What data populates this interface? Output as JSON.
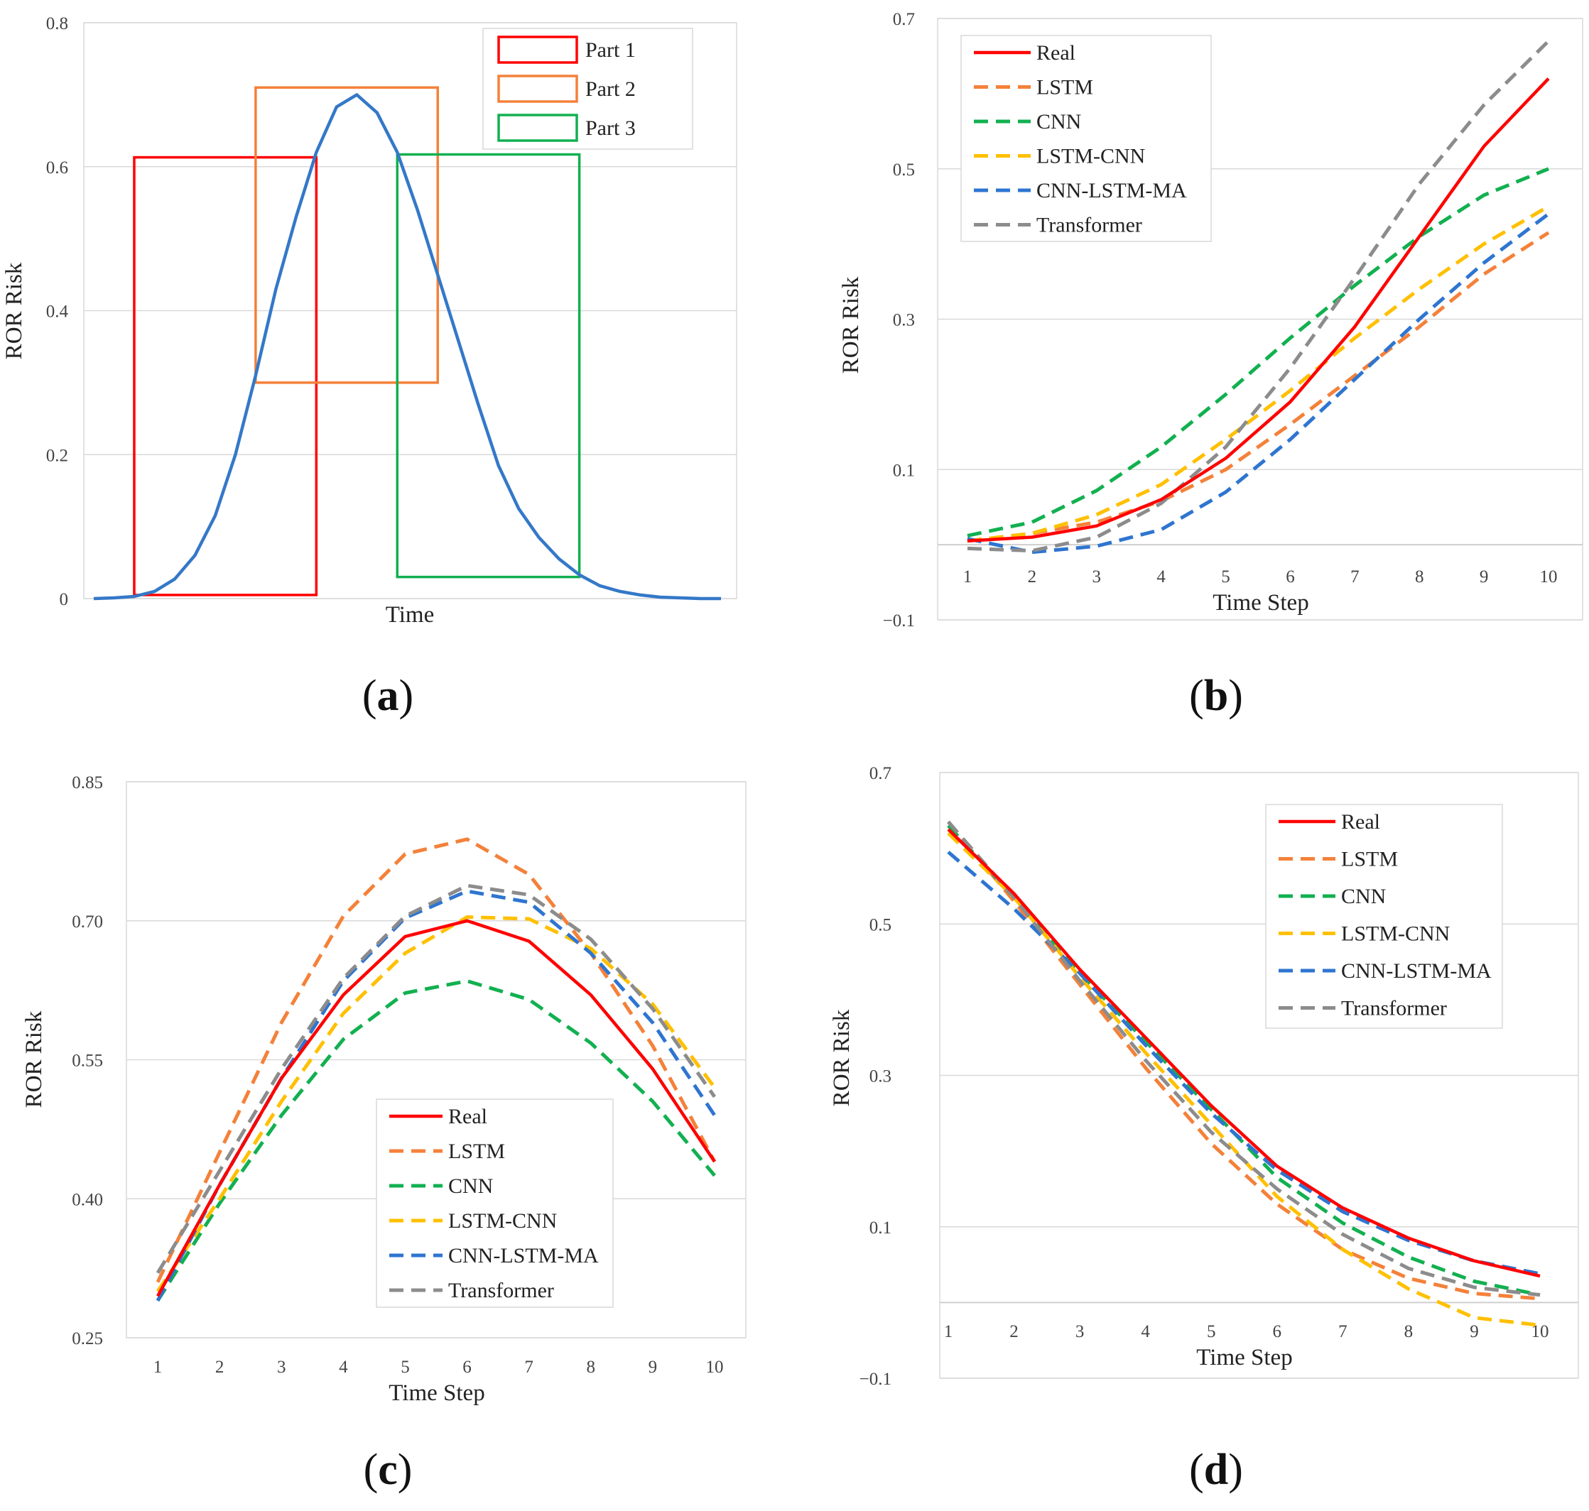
{
  "colors": {
    "real": "#ff0000",
    "lstm": "#f4813a",
    "cnn": "#12b050",
    "lstm_cnn": "#ffc000",
    "cnn_lstm_ma": "#2e75d0",
    "transformer": "#8c8c8c",
    "curve": "#3478c8",
    "part1": "#ff0000",
    "part2": "#f4813a",
    "part3": "#12b050"
  },
  "chart_data": [
    {
      "id": "a",
      "type": "line",
      "panel_label": "a",
      "xlabel": "Time",
      "ylabel": "ROR Risk",
      "ylim": [
        0,
        0.8
      ],
      "yticks": [
        "0",
        "0.2",
        "0.4",
        "0.6",
        "0.8"
      ],
      "x": [
        0,
        1,
        2,
        3,
        4,
        5,
        6,
        7,
        8,
        9,
        10,
        11,
        12,
        13,
        14,
        15,
        16,
        17,
        18,
        19,
        20,
        21,
        22,
        23,
        24,
        25,
        26,
        27,
        28,
        29,
        30,
        31
      ],
      "series": [
        {
          "name": "ROR Risk",
          "color_key": "curve",
          "values": [
            0.0,
            0.001,
            0.003,
            0.01,
            0.027,
            0.06,
            0.115,
            0.2,
            0.31,
            0.43,
            0.53,
            0.62,
            0.683,
            0.7,
            0.675,
            0.62,
            0.54,
            0.45,
            0.36,
            0.27,
            0.185,
            0.125,
            0.085,
            0.055,
            0.033,
            0.018,
            0.01,
            0.005,
            0.002,
            0.001,
            0.0,
            0.0
          ]
        }
      ],
      "regions": [
        {
          "label": "Part 1",
          "color_key": "part1",
          "x": [
            2,
            11
          ],
          "y": [
            0.005,
            0.613
          ]
        },
        {
          "label": "Part 2",
          "color_key": "part2",
          "x": [
            8,
            17
          ],
          "y": [
            0.3,
            0.71
          ]
        },
        {
          "label": "Part 3",
          "color_key": "part3",
          "x": [
            15,
            24
          ],
          "y": [
            0.03,
            0.617
          ]
        }
      ],
      "legend": [
        "Part 1",
        "Part 2",
        "Part 3"
      ],
      "legend_position": "top-right"
    },
    {
      "id": "b",
      "type": "line",
      "panel_label": "b",
      "xlabel": "Time Step",
      "ylabel": "ROR Risk",
      "ylim": [
        -0.1,
        0.7
      ],
      "yticks": [
        "−0.1",
        "0.1",
        "0.3",
        "0.5",
        "0.7"
      ],
      "categories": [
        "1",
        "2",
        "3",
        "4",
        "5",
        "6",
        "7",
        "8",
        "9",
        "10"
      ],
      "series": [
        {
          "name": "Real",
          "color_key": "real",
          "dash": false,
          "values": [
            0.005,
            0.01,
            0.025,
            0.06,
            0.115,
            0.19,
            0.29,
            0.41,
            0.53,
            0.62
          ]
        },
        {
          "name": "LSTM",
          "color_key": "lstm",
          "dash": true,
          "values": [
            0.005,
            0.015,
            0.03,
            0.058,
            0.1,
            0.16,
            0.225,
            0.29,
            0.36,
            0.415
          ]
        },
        {
          "name": "CNN",
          "color_key": "cnn",
          "dash": true,
          "values": [
            0.012,
            0.03,
            0.072,
            0.13,
            0.2,
            0.275,
            0.345,
            0.41,
            0.465,
            0.5
          ]
        },
        {
          "name": "LSTM-CNN",
          "color_key": "lstm_cnn",
          "dash": true,
          "values": [
            0.005,
            0.015,
            0.04,
            0.08,
            0.14,
            0.205,
            0.275,
            0.34,
            0.4,
            0.45
          ]
        },
        {
          "name": "CNN-LSTM-MA",
          "color_key": "cnn_lstm_ma",
          "dash": true,
          "values": [
            0.008,
            -0.01,
            -0.002,
            0.02,
            0.07,
            0.14,
            0.22,
            0.3,
            0.375,
            0.44
          ]
        },
        {
          "name": "Transformer",
          "color_key": "transformer",
          "dash": true,
          "values": [
            -0.005,
            -0.008,
            0.01,
            0.055,
            0.13,
            0.235,
            0.355,
            0.48,
            0.585,
            0.67
          ]
        }
      ],
      "legend_position": "top-left"
    },
    {
      "id": "c",
      "type": "line",
      "panel_label": "c",
      "xlabel": "Time Step",
      "ylabel": "ROR Risk",
      "ylim": [
        0.25,
        0.85
      ],
      "yticks": [
        "0.25",
        "0.40",
        "0.55",
        "0.70",
        "0.85"
      ],
      "categories": [
        "1",
        "2",
        "3",
        "4",
        "5",
        "6",
        "7",
        "8",
        "9",
        "10"
      ],
      "series": [
        {
          "name": "Real",
          "color_key": "real",
          "dash": false,
          "values": [
            0.295,
            0.415,
            0.53,
            0.62,
            0.683,
            0.7,
            0.678,
            0.62,
            0.54,
            0.44
          ]
        },
        {
          "name": "LSTM",
          "color_key": "lstm",
          "dash": true,
          "values": [
            0.31,
            0.45,
            0.59,
            0.705,
            0.772,
            0.788,
            0.75,
            0.665,
            0.565,
            0.44
          ]
        },
        {
          "name": "CNN",
          "color_key": "cnn",
          "dash": true,
          "values": [
            0.29,
            0.395,
            0.49,
            0.572,
            0.622,
            0.635,
            0.615,
            0.568,
            0.505,
            0.425
          ]
        },
        {
          "name": "LSTM-CNN",
          "color_key": "lstm_cnn",
          "dash": true,
          "values": [
            0.3,
            0.4,
            0.505,
            0.6,
            0.665,
            0.704,
            0.702,
            0.67,
            0.61,
            0.52
          ]
        },
        {
          "name": "CNN-LSTM-MA",
          "color_key": "cnn_lstm_ma",
          "dash": true,
          "values": [
            0.29,
            0.415,
            0.53,
            0.635,
            0.703,
            0.732,
            0.72,
            0.665,
            0.59,
            0.49
          ]
        },
        {
          "name": "Transformer",
          "color_key": "transformer",
          "dash": true,
          "values": [
            0.32,
            0.43,
            0.54,
            0.638,
            0.705,
            0.738,
            0.728,
            0.68,
            0.605,
            0.51
          ]
        }
      ],
      "legend_position": "bottom-center"
    },
    {
      "id": "d",
      "type": "line",
      "panel_label": "d",
      "xlabel": "Time Step",
      "ylabel": "ROR Risk",
      "ylim": [
        -0.1,
        0.7
      ],
      "yticks": [
        "−0.1",
        "0.1",
        "0.3",
        "0.5",
        "0.7"
      ],
      "categories": [
        "1",
        "2",
        "3",
        "4",
        "5",
        "6",
        "7",
        "8",
        "9",
        "10"
      ],
      "series": [
        {
          "name": "Real",
          "color_key": "real",
          "dash": false,
          "values": [
            0.625,
            0.54,
            0.44,
            0.35,
            0.26,
            0.18,
            0.125,
            0.085,
            0.055,
            0.035
          ]
        },
        {
          "name": "LSTM",
          "color_key": "lstm",
          "dash": true,
          "values": [
            0.635,
            0.53,
            0.42,
            0.31,
            0.21,
            0.13,
            0.07,
            0.032,
            0.012,
            0.005
          ]
        },
        {
          "name": "CNN",
          "color_key": "cnn",
          "dash": true,
          "values": [
            0.63,
            0.535,
            0.435,
            0.345,
            0.255,
            0.165,
            0.105,
            0.06,
            0.028,
            0.01
          ]
        },
        {
          "name": "LSTM-CNN",
          "color_key": "lstm_cnn",
          "dash": true,
          "values": [
            0.62,
            0.535,
            0.43,
            0.33,
            0.235,
            0.14,
            0.07,
            0.018,
            -0.02,
            -0.03
          ]
        },
        {
          "name": "CNN-LSTM-MA",
          "color_key": "cnn_lstm_ma",
          "dash": true,
          "values": [
            0.595,
            0.52,
            0.435,
            0.34,
            0.25,
            0.175,
            0.12,
            0.082,
            0.055,
            0.038
          ]
        },
        {
          "name": "Transformer",
          "color_key": "transformer",
          "dash": true,
          "values": [
            0.635,
            0.535,
            0.425,
            0.32,
            0.225,
            0.15,
            0.09,
            0.045,
            0.02,
            0.01
          ]
        }
      ],
      "legend_position": "top-right"
    }
  ]
}
